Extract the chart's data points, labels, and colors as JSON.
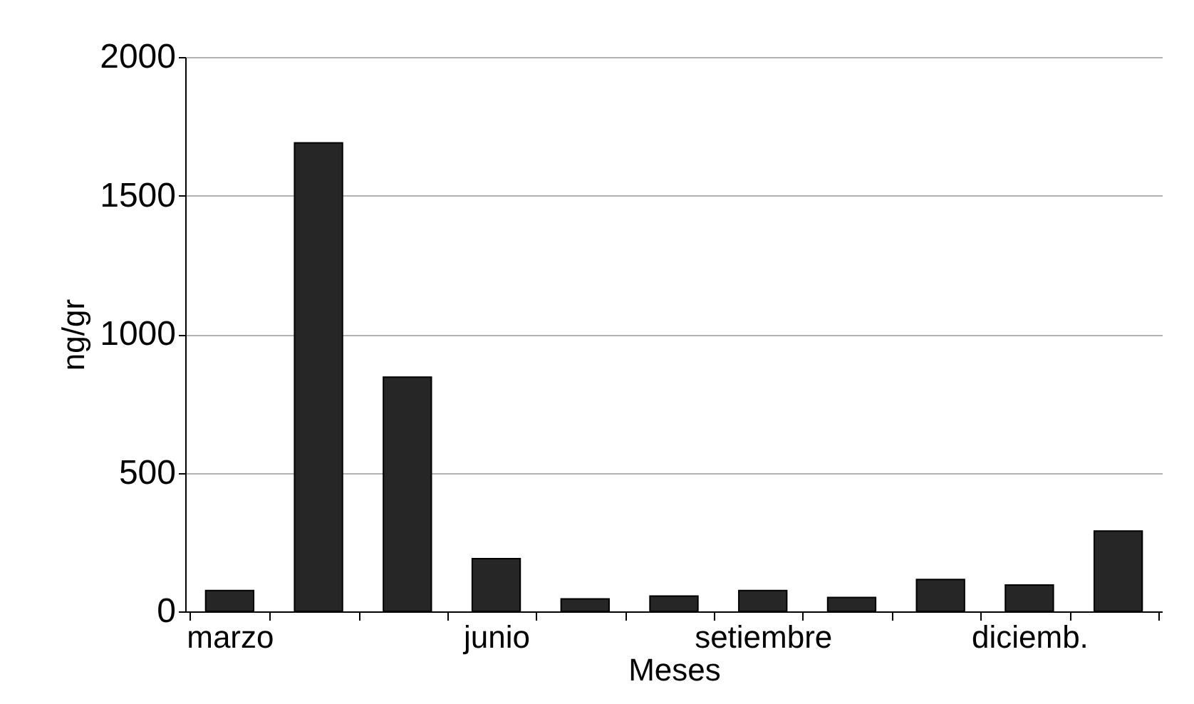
{
  "chart_data": {
    "type": "bar",
    "xlabel": "Meses",
    "ylabel": "ng/gr",
    "categories": [
      "marzo",
      null,
      null,
      "junio",
      null,
      null,
      "setiembre",
      null,
      null,
      "diciemb.",
      null
    ],
    "values": [
      75,
      1690,
      845,
      190,
      45,
      55,
      75,
      50,
      115,
      95,
      290
    ],
    "color": "#262626",
    "ylim": [
      0,
      2000
    ],
    "yticks": [
      0,
      500,
      1000,
      1500,
      2000
    ],
    "grid": "y"
  }
}
